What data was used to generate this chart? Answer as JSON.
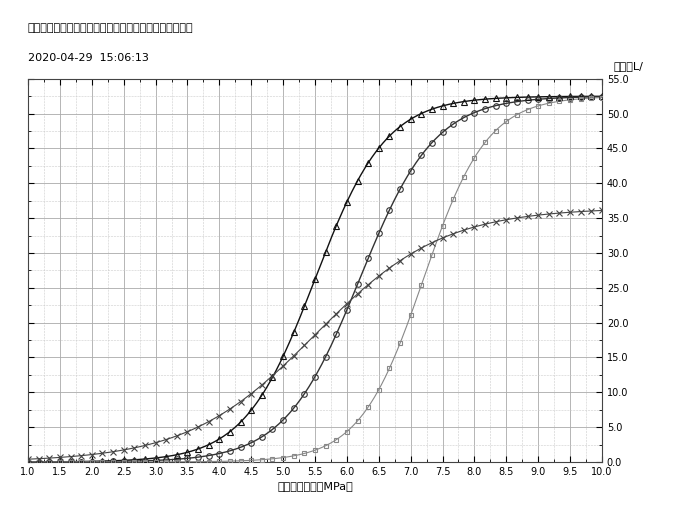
{
  "title_line1": "パイロット圧・押さえ圧・流量特性計測（立上り特性）",
  "title_line2": "2020-04-29  15:06:13",
  "xlabel": "パイロット圧（MPa）",
  "ylabel": "流速（L/",
  "xmin": 1.0,
  "xmax": 10.0,
  "ymin": 0.0,
  "ymax": 55.0,
  "xticks": [
    1.0,
    1.5,
    2.0,
    2.5,
    3.0,
    3.5,
    4.0,
    4.5,
    5.0,
    5.5,
    6.0,
    6.5,
    7.0,
    7.5,
    8.0,
    8.5,
    9.0,
    9.5,
    10.0
  ],
  "yticks": [
    0.0,
    5.0,
    10.0,
    15.0,
    20.0,
    25.0,
    30.0,
    35.0,
    40.0,
    45.0,
    50.0,
    55.0
  ],
  "curve_params": [
    {
      "marker": "^",
      "color": "#111111",
      "ms": 4,
      "x_mid": 5.5,
      "steepness": 1.8,
      "y_max": 52.5,
      "lw": 1.0
    },
    {
      "marker": "o",
      "color": "#333333",
      "ms": 4,
      "x_mid": 6.2,
      "steepness": 1.7,
      "y_max": 52.5,
      "lw": 1.0
    },
    {
      "marker": "s",
      "color": "#888888",
      "ms": 3,
      "x_mid": 7.2,
      "steepness": 2.0,
      "y_max": 52.5,
      "lw": 0.8
    },
    {
      "marker": "x",
      "color": "#444444",
      "ms": 4,
      "x_mid": 5.5,
      "steepness": 1.0,
      "y_max": 36.5,
      "lw": 0.8
    }
  ]
}
